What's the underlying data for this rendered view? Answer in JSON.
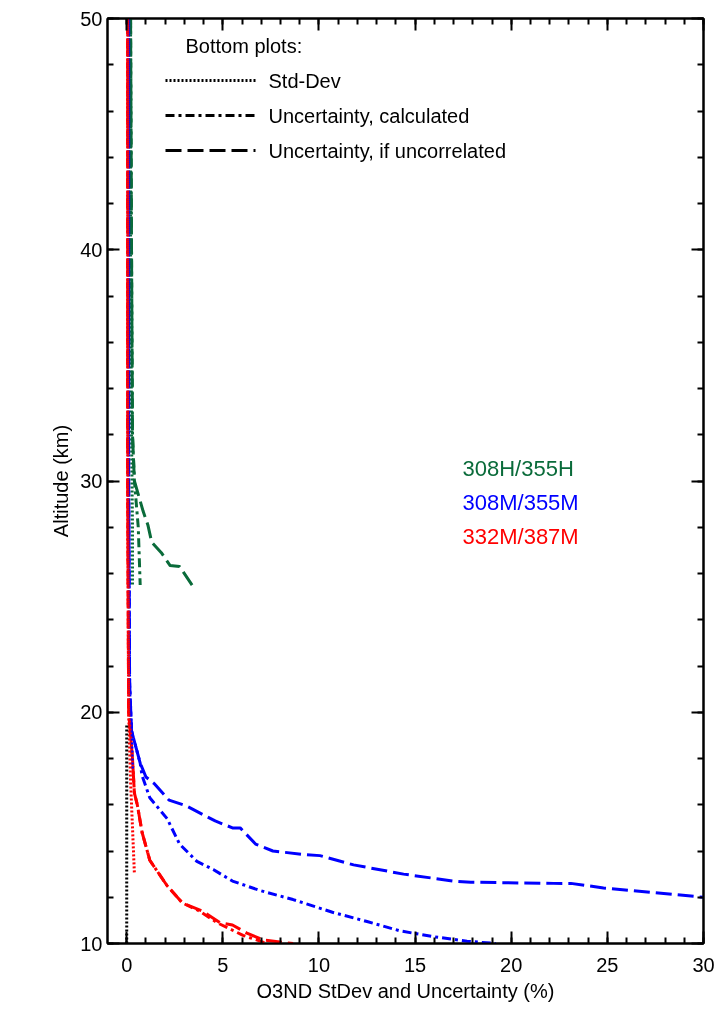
{
  "chart_data": {
    "type": "line",
    "xlabel": "O3ND StDev and Uncertainty (%)",
    "ylabel": "Altitude (km)",
    "legend_title": "Bottom plots:",
    "annotations": [
      "Std-Dev",
      "Uncertainty, calculated",
      "Uncertainty, if uncorrelated"
    ],
    "xlim": [
      -1,
      30
    ],
    "xticks": [
      0,
      5,
      10,
      15,
      20,
      25,
      30
    ],
    "ylim": [
      10,
      50
    ],
    "yticks": [
      10,
      20,
      30,
      40,
      50
    ],
    "grid": false,
    "series": [
      {
        "color": "#0a6b3a",
        "line_style": "dotted",
        "x": [
          0.2,
          0.2,
          0.25,
          0.3,
          0.3
        ],
        "values": [
          50,
          40,
          32,
          28,
          25.5
        ]
      },
      {
        "color": "#0a6b3a",
        "line_style": "dashdot",
        "x": [
          0.2,
          0.25,
          0.3,
          0.4,
          0.6,
          0.7
        ],
        "values": [
          50,
          40,
          32,
          30,
          28,
          25.5
        ]
      },
      {
        "name": "308H/355H",
        "color": "#0a6b3a",
        "line_style": "dashed",
        "x": [
          0.2,
          0.25,
          0.3,
          0.4,
          0.85,
          1.1,
          1.3,
          1.8,
          2.25,
          2.75,
          3.4
        ],
        "values": [
          50,
          40,
          32,
          30,
          28.7,
          28.1,
          27.35,
          26.9,
          26.35,
          26.3,
          25.5
        ]
      },
      {
        "color": "#0000ff",
        "line_style": "dotted",
        "x": [
          0.1,
          0.1,
          0.1,
          0.15,
          0.25,
          0.3
        ],
        "values": [
          50,
          40,
          30,
          21,
          19,
          17.5
        ]
      },
      {
        "color": "#0000ff",
        "line_style": "dashdot",
        "x": [
          0.1,
          0.1,
          0.1,
          0.15,
          0.25,
          0.7,
          0.8,
          1.2,
          2.1,
          2.75,
          3.65,
          4.5,
          5.5,
          6.9,
          8.65,
          10.7,
          12.5,
          14.2,
          15.9,
          17.7,
          19.2
        ],
        "values": [
          50,
          40,
          30,
          21.3,
          19.2,
          17.8,
          17.25,
          16.3,
          15.4,
          14.3,
          13.55,
          13.2,
          12.7,
          12.3,
          11.9,
          11.35,
          10.95,
          10.55,
          10.3,
          10.1,
          10.0
        ]
      },
      {
        "name": "308M/355M",
        "color": "#0000ff",
        "line_style": "dashed",
        "x": [
          0.1,
          0.1,
          0.1,
          0.15,
          0.25,
          0.7,
          1.0,
          1.45,
          2.2,
          3.1,
          4.6,
          5.5,
          5.9,
          6.7,
          7.6,
          9.2,
          10.05,
          11.8,
          14.4,
          17.0,
          17.9,
          22.2,
          23.1,
          24.8,
          27.4,
          30
        ],
        "values": [
          50,
          40,
          30,
          21.3,
          19.2,
          17.8,
          17.2,
          16.9,
          16.2,
          15.95,
          15.3,
          15.0,
          15.0,
          14.3,
          14.0,
          13.85,
          13.8,
          13.4,
          13.0,
          12.7,
          12.65,
          12.6,
          12.6,
          12.4,
          12.2,
          12.0
        ]
      },
      {
        "color": "#ff0000",
        "line_style": "dotted",
        "x": [
          0.05,
          0.05,
          0.05,
          0.1,
          0.2,
          0.3,
          0.4
        ],
        "values": [
          50,
          40,
          30,
          20,
          17,
          15,
          13
        ]
      },
      {
        "color": "#ff0000",
        "line_style": "dashdot",
        "x": [
          0.05,
          0.05,
          0.05,
          0.1,
          0.3,
          0.4,
          0.55,
          0.8,
          1.2,
          2.1,
          2.9,
          3.8,
          4.7,
          6.05,
          7.3
        ],
        "values": [
          50,
          40,
          30,
          20,
          18,
          16.5,
          16.0,
          14.8,
          13.6,
          12.5,
          11.75,
          11.4,
          10.9,
          10.35,
          10.0
        ]
      },
      {
        "name": "332M/387M",
        "color": "#ff0000",
        "line_style": "dashed",
        "x": [
          0.05,
          0.05,
          0.05,
          0.1,
          0.3,
          0.4,
          0.55,
          0.8,
          1.2,
          2.1,
          2.9,
          3.95,
          4.85,
          5.5,
          6.25,
          7.1,
          8.65
        ],
        "values": [
          50,
          40,
          30,
          20,
          18,
          16.5,
          16.0,
          14.8,
          13.6,
          12.5,
          11.75,
          11.4,
          10.9,
          10.8,
          10.45,
          10.15,
          10.0
        ]
      },
      {
        "color": "#000000",
        "line_style": "dotted",
        "x": [
          0,
          0
        ],
        "values": [
          10,
          19.5
        ]
      }
    ]
  }
}
